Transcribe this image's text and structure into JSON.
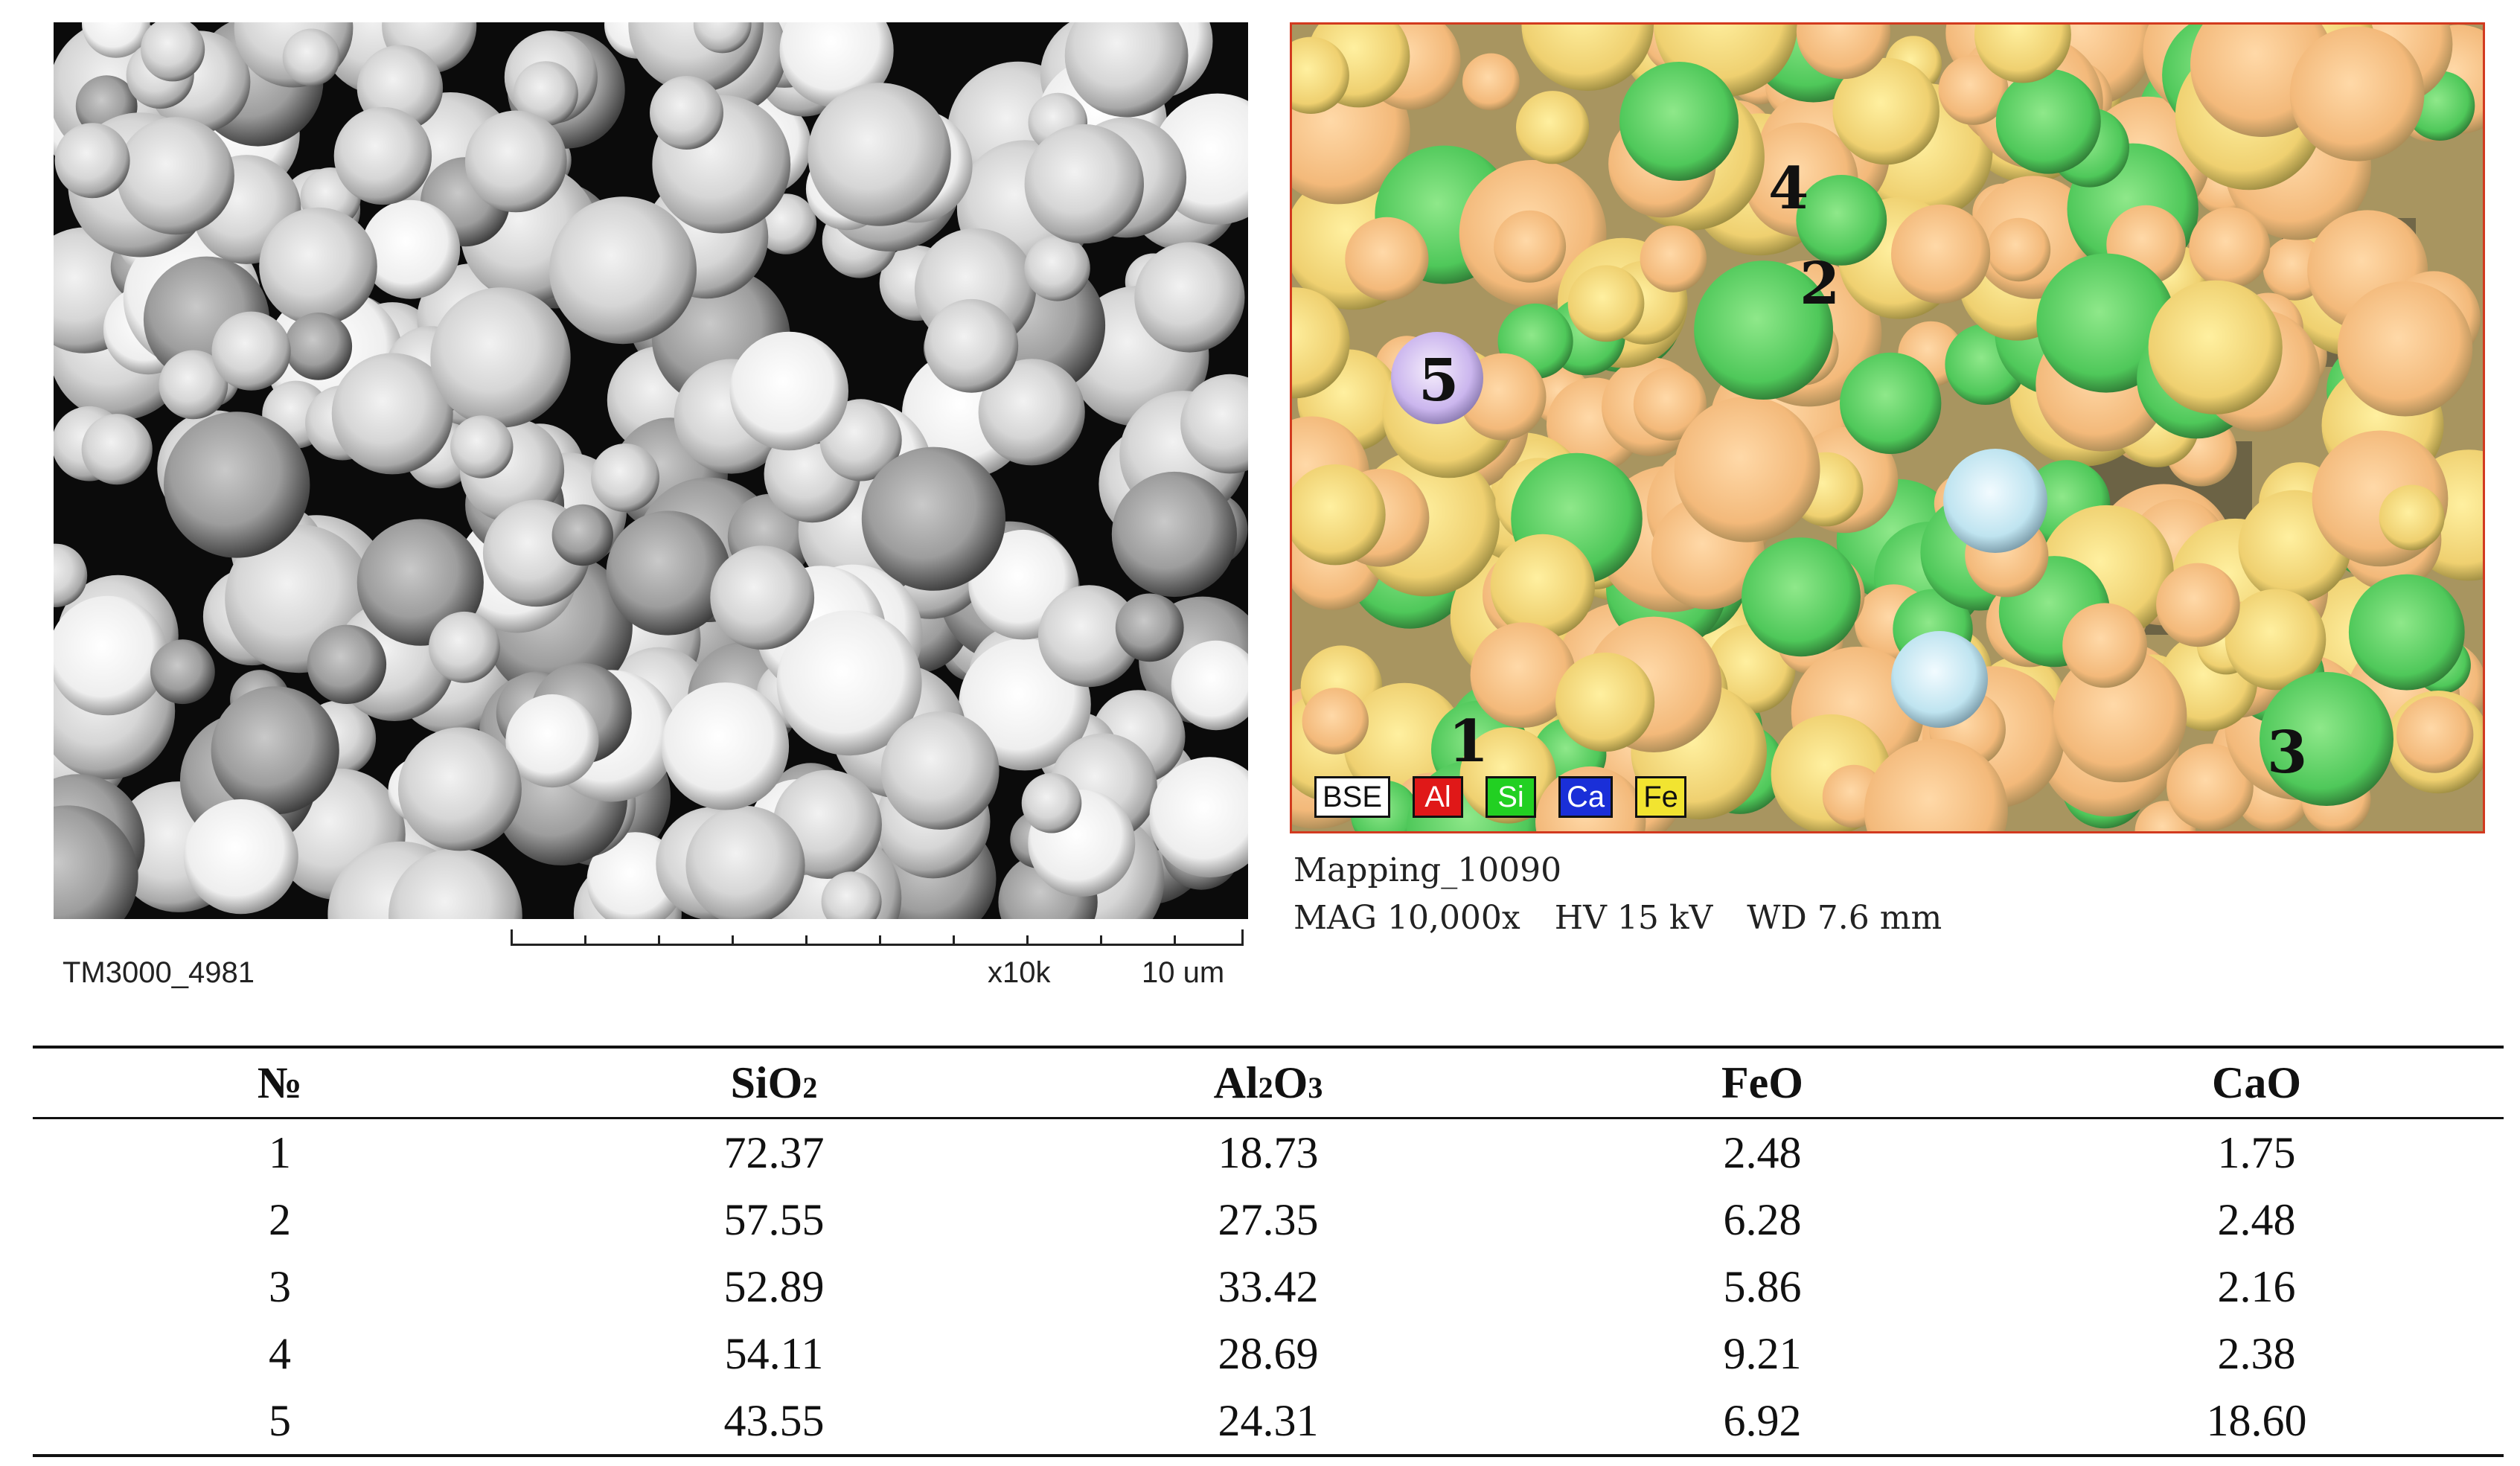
{
  "sem": {
    "image_id": "TM3000_4981",
    "magnification": "x10k",
    "scale_bar": "10 um"
  },
  "eds": {
    "caption_line1": "Mapping_10090",
    "mag": "MAG 10,000x",
    "hv": "HV 15 kV",
    "wd": "WD 7.6 mm",
    "point_labels": [
      "1",
      "2",
      "3",
      "4",
      "5"
    ],
    "legend": [
      {
        "label": "BSE",
        "color": "#ffffff",
        "text_color": "#111111"
      },
      {
        "label": "Al",
        "color": "#e01818",
        "text_color": "#ffffff"
      },
      {
        "label": "Si",
        "color": "#22d022",
        "text_color": "#ffffff"
      },
      {
        "label": "Ca",
        "color": "#1a2fd8",
        "text_color": "#ffffff"
      },
      {
        "label": "Fe",
        "color": "#f2e430",
        "text_color": "#111111"
      }
    ]
  },
  "table": {
    "headers": {
      "no": "№",
      "sio2_main": "SiO",
      "sio2_sub": "2",
      "al2o3_a": "Al",
      "al2o3_sub1": "2",
      "al2o3_b": "O",
      "al2o3_sub2": "3",
      "feo": "FeO",
      "cao": "CaO"
    },
    "rows": [
      {
        "no": "1",
        "sio2": "72.37",
        "al2o3": "18.73",
        "feo": "2.48",
        "cao": "1.75"
      },
      {
        "no": "2",
        "sio2": "57.55",
        "al2o3": "27.35",
        "feo": "6.28",
        "cao": "2.48"
      },
      {
        "no": "3",
        "sio2": "52.89",
        "al2o3": "33.42",
        "feo": "5.86",
        "cao": "2.16"
      },
      {
        "no": "4",
        "sio2": "54.11",
        "al2o3": "28.69",
        "feo": "9.21",
        "cao": "2.38"
      },
      {
        "no": "5",
        "sio2": "43.55",
        "al2o3": "24.31",
        "feo": "6.92",
        "cao": "18.60"
      }
    ]
  }
}
